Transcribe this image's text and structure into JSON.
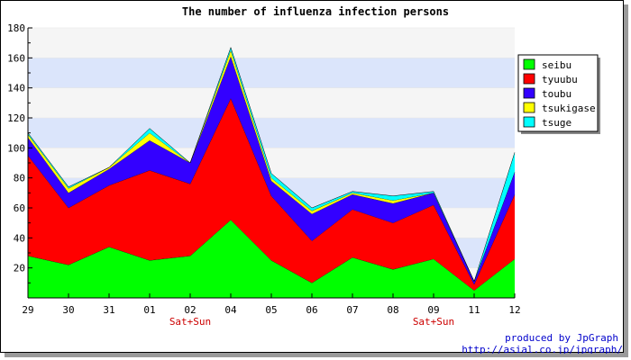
{
  "chart_data": {
    "type": "area",
    "stacked": true,
    "title": "The number of influenza infection persons",
    "categories": [
      "29",
      "30",
      "31",
      "01",
      "02",
      "04",
      "05",
      "06",
      "07",
      "08",
      "09",
      "11",
      "12"
    ],
    "weekend_labels": [
      {
        "category": "02",
        "text": "Sat+Sun"
      },
      {
        "category": "09",
        "text": "Sat+Sun"
      }
    ],
    "ylim": [
      0,
      180
    ],
    "yticks": [
      20,
      40,
      60,
      80,
      100,
      120,
      140,
      160,
      180
    ],
    "grid": true,
    "band_colors": [
      "#f5f5f5",
      "#dbe5fb"
    ],
    "legend_placement": "right-top",
    "series": [
      {
        "name": "seibu",
        "color": "#00ff00",
        "values": [
          28,
          22,
          34,
          25,
          28,
          52,
          25,
          10,
          27,
          19,
          26,
          5,
          26
        ]
      },
      {
        "name": "tyuubu",
        "color": "#ff0000",
        "values": [
          67,
          38,
          41,
          60,
          48,
          81,
          43,
          28,
          32,
          31,
          36,
          4,
          43
        ]
      },
      {
        "name": "toubu",
        "color": "#3300ff",
        "values": [
          12,
          10,
          11,
          20,
          14,
          28,
          10,
          18,
          10,
          13,
          8,
          2,
          15
        ]
      },
      {
        "name": "tsukigase",
        "color": "#ffff00",
        "values": [
          2,
          3,
          1,
          5,
          0,
          4,
          2,
          2,
          1,
          2,
          0,
          0,
          0
        ]
      },
      {
        "name": "tsuge",
        "color": "#00ffff",
        "values": [
          1,
          1,
          0,
          3,
          0,
          2,
          3,
          2,
          1,
          3,
          1,
          0,
          13
        ]
      }
    ]
  },
  "credit": {
    "line1": "produced by JpGraph",
    "line2": "http://asial.co.jp/jpgraph/"
  }
}
